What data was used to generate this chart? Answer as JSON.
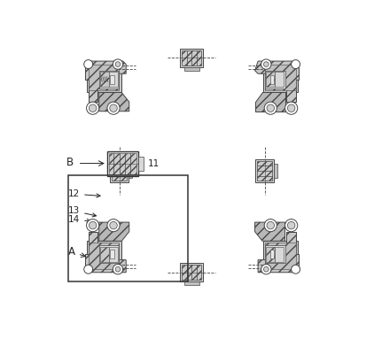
{
  "fig_width": 4.22,
  "fig_height": 3.83,
  "dpi": 100,
  "bg_color": "#ffffff",
  "ec": "#444444",
  "fc_hatch": "#c8c8c8",
  "fc_light": "#e0e0e0",
  "fc_mid": "#b8b8b8",
  "fc_dark": "#909090",
  "lw_main": 0.7,
  "lw_thin": 0.4,
  "ann_fs": 7.5,
  "ann_color": "#222222"
}
